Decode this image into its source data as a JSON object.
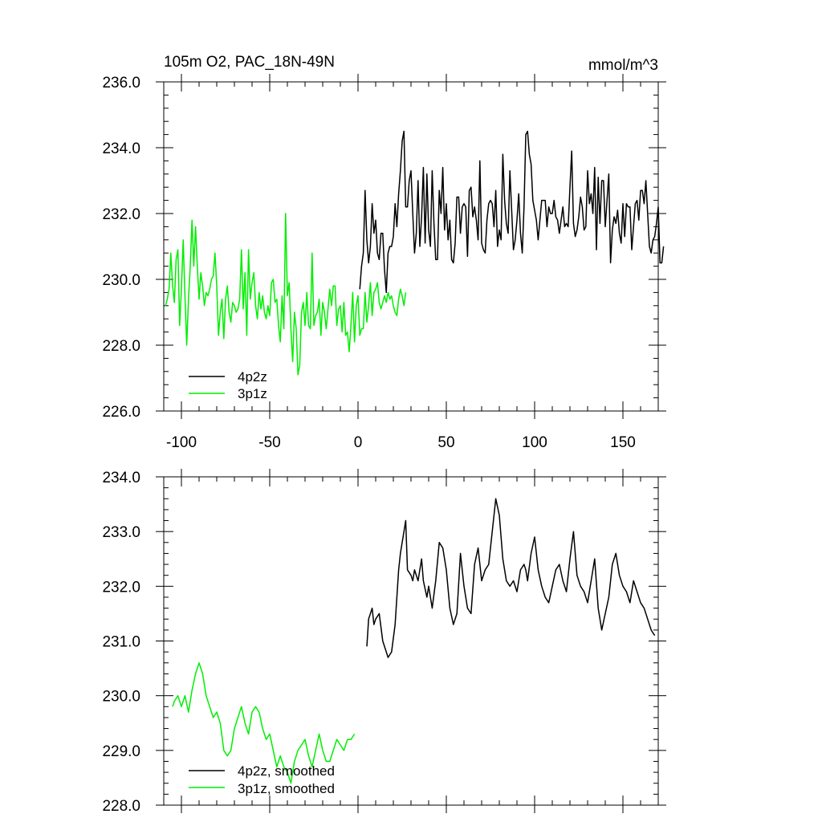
{
  "chart_data": [
    {
      "type": "line",
      "title": "105m O2, PAC_18N-49N",
      "units": "mmol/m^3",
      "xlim": [
        -110,
        170
      ],
      "ylim": [
        226,
        236
      ],
      "xticks": [
        -100,
        -50,
        0,
        50,
        100,
        150
      ],
      "xtick_labels": [
        "-100",
        "-50",
        "0",
        "50",
        "100",
        "150"
      ],
      "yticks": [
        226,
        228,
        230,
        232,
        234,
        236
      ],
      "ytick_labels": [
        "226.0",
        "228.0",
        "230.0",
        "232.0",
        "234.0",
        "236.0"
      ],
      "legend_position": "bottom-left",
      "series": [
        {
          "name": "4p2z",
          "color": "#000000",
          "x_start": 1,
          "x_step": 1,
          "values": [
            229.7,
            230.4,
            230.8,
            232.7,
            231.2,
            230.5,
            231.0,
            232.3,
            231.4,
            231.8,
            230.8,
            230.6,
            231.4,
            231.4,
            230.3,
            229.6,
            230.8,
            231.0,
            231.0,
            231.3,
            232.3,
            231.6,
            232.6,
            233.3,
            234.2,
            234.5,
            232.2,
            232.2,
            233.0,
            233.3,
            232.0,
            230.8,
            231.4,
            233.0,
            231.0,
            231.9,
            233.4,
            231.1,
            233.2,
            231.5,
            231.0,
            233.3,
            231.7,
            230.6,
            230.6,
            232.7,
            232.0,
            233.4,
            231.5,
            232.3,
            231.2,
            231.8,
            230.6,
            230.5,
            231.1,
            232.5,
            232.5,
            231.4,
            232.2,
            232.3,
            232.2,
            230.7,
            232.7,
            232.8,
            231.9,
            232.2,
            231.8,
            231.2,
            233.6,
            231.1,
            230.9,
            230.8,
            231.8,
            232.3,
            232.4,
            232.3,
            231.6,
            232.7,
            231.0,
            231.5,
            231.2,
            233.8,
            232.4,
            231.7,
            231.4,
            233.3,
            232.1,
            230.9,
            231.2,
            231.8,
            232.6,
            231.4,
            230.8,
            232.2,
            234.4,
            234.5,
            233.8,
            233.5,
            232.4,
            232.1,
            231.8,
            231.2,
            231.8,
            232.4,
            232.4,
            232.4,
            231.6,
            232.2,
            232.0,
            232.0,
            232.4,
            231.9,
            231.8,
            231.4,
            231.8,
            232.2,
            231.6,
            231.7,
            231.6,
            232.8,
            233.9,
            231.7,
            231.3,
            231.5,
            231.9,
            232.5,
            232.2,
            231.5,
            231.6,
            233.3,
            232.3,
            232.6,
            232.0,
            233.4,
            230.9,
            233.1,
            231.7,
            233.0,
            233.0,
            231.6,
            232.4,
            233.2,
            230.5,
            231.5,
            231.9,
            231.7,
            232.1,
            231.4,
            231.1,
            232.3,
            231.3,
            232.3,
            232.2,
            232.2,
            230.9,
            231.6,
            232.3,
            232.4,
            231.8,
            232.7,
            232.7,
            232.3,
            233.0,
            232.0,
            231.0,
            230.8,
            231.2,
            231.3,
            231.7,
            232.2,
            230.5,
            230.5,
            231.0
          ]
        },
        {
          "name": "3p1z",
          "color": "#00ee00",
          "x_start": -109,
          "x_step": 1,
          "values": [
            229.2,
            229.4,
            229.7,
            230.8,
            229.8,
            229.3,
            230.6,
            230.9,
            228.6,
            229.7,
            231.2,
            229.5,
            228.0,
            229.4,
            230.4,
            231.8,
            230.4,
            231.6,
            230.4,
            229.4,
            230.2,
            229.8,
            229.2,
            229.6,
            229.5,
            229.7,
            230.0,
            230.1,
            230.8,
            229.8,
            228.3,
            229.0,
            229.4,
            228.2,
            229.4,
            229.8,
            229.0,
            228.7,
            229.3,
            229.2,
            229.0,
            229.1,
            229.4,
            230.9,
            229.1,
            230.2,
            228.3,
            230.9,
            229.4,
            229.9,
            230.2,
            229.2,
            228.8,
            229.6,
            229.1,
            229.5,
            229.0,
            228.8,
            229.2,
            228.9,
            229.9,
            230.0,
            229.3,
            229.4,
            228.6,
            228.1,
            229.5,
            228.5,
            232.0,
            229.5,
            229.9,
            228.5,
            227.5,
            229.0,
            228.5,
            227.1,
            227.4,
            229.0,
            229.3,
            228.6,
            229.6,
            228.6,
            228.5,
            230.8,
            228.6,
            228.9,
            229.0,
            229.4,
            228.3,
            229.3,
            229.0,
            228.5,
            229.1,
            229.7,
            229.2,
            229.8,
            229.8,
            228.6,
            229.1,
            229.2,
            228.4,
            229.3,
            228.3,
            228.4,
            227.8,
            228.6,
            229.6,
            228.1,
            229.2,
            229.5,
            228.3,
            228.5,
            228.5,
            229.6,
            228.7,
            229.2,
            229.9,
            228.9,
            229.6,
            229.7,
            229.9,
            229.3,
            229.1,
            229.3,
            229.5,
            229.3,
            229.6,
            229.4,
            229.5,
            229.2,
            229.0,
            228.9,
            229.4,
            229.7,
            229.5,
            229.2,
            229.6
          ]
        }
      ]
    },
    {
      "type": "line",
      "xlim": [
        -110,
        170
      ],
      "ylim": [
        228,
        234
      ],
      "xticks": [
        -100,
        -50,
        0,
        50,
        100,
        150
      ],
      "yticks": [
        228,
        229,
        230,
        231,
        232,
        233,
        234
      ],
      "ytick_labels": [
        "228.0",
        "229.0",
        "230.0",
        "231.0",
        "232.0",
        "233.0",
        "234.0"
      ],
      "legend_position": "bottom-left",
      "series": [
        {
          "name": "4p2z, smoothed",
          "color": "#000000",
          "x": [
            5,
            6,
            8,
            9,
            10,
            12,
            14,
            16,
            17,
            19,
            21,
            23,
            24,
            26,
            27,
            28,
            30,
            31,
            32,
            34,
            36,
            37,
            39,
            40,
            42,
            44,
            46,
            48,
            50,
            52,
            54,
            56,
            58,
            60,
            62,
            64,
            66,
            68,
            70,
            72,
            74,
            76,
            78,
            80,
            82,
            84,
            86,
            88,
            90,
            92,
            94,
            95,
            96,
            98,
            100,
            102,
            104,
            106,
            108,
            110,
            112,
            114,
            116,
            118,
            120,
            122,
            124,
            126,
            128,
            130,
            132,
            134,
            136,
            138,
            140,
            142,
            144,
            146,
            148,
            150,
            152,
            154,
            156,
            158,
            160,
            162,
            164,
            166,
            168
          ],
          "values": [
            230.9,
            231.4,
            231.6,
            231.3,
            231.4,
            231.5,
            231.0,
            230.8,
            230.7,
            230.8,
            231.3,
            232.3,
            232.6,
            233.0,
            233.2,
            232.3,
            232.2,
            232.1,
            232.3,
            232.1,
            232.5,
            232.1,
            231.8,
            232.0,
            231.6,
            232.1,
            232.8,
            232.7,
            232.3,
            231.6,
            231.3,
            231.5,
            232.6,
            232.0,
            231.6,
            231.5,
            232.4,
            232.7,
            232.1,
            232.3,
            232.4,
            233.0,
            233.6,
            233.3,
            232.5,
            232.1,
            232.0,
            232.1,
            231.9,
            232.3,
            232.4,
            232.3,
            232.1,
            232.6,
            232.9,
            232.3,
            232.0,
            231.8,
            231.7,
            232.0,
            232.3,
            232.4,
            232.1,
            231.9,
            232.5,
            233.0,
            232.2,
            232.0,
            231.9,
            231.7,
            232.1,
            232.5,
            231.6,
            231.2,
            231.5,
            231.8,
            232.4,
            232.6,
            232.2,
            232.0,
            231.9,
            231.7,
            232.1,
            231.9,
            231.7,
            231.6,
            231.4,
            231.2,
            231.1
          ]
        },
        {
          "name": "3p1z, smoothed",
          "color": "#00ee00",
          "x": [
            -105,
            -104,
            -102,
            -100,
            -98,
            -96,
            -94,
            -92,
            -90,
            -88,
            -86,
            -84,
            -82,
            -80,
            -78,
            -76,
            -74,
            -72,
            -70,
            -68,
            -66,
            -64,
            -62,
            -60,
            -58,
            -56,
            -54,
            -52,
            -50,
            -48,
            -46,
            -44,
            -42,
            -40,
            -38,
            -36,
            -34,
            -32,
            -30,
            -28,
            -26,
            -24,
            -22,
            -20,
            -18,
            -16,
            -14,
            -12,
            -10,
            -8,
            -6,
            -4,
            -2
          ],
          "values": [
            229.8,
            229.9,
            230.0,
            229.8,
            230.0,
            229.7,
            230.1,
            230.4,
            230.6,
            230.4,
            230.0,
            229.8,
            229.6,
            229.7,
            229.5,
            229.0,
            228.9,
            229.0,
            229.4,
            229.6,
            229.8,
            229.5,
            229.3,
            229.7,
            229.8,
            229.7,
            229.4,
            229.2,
            229.3,
            229.0,
            228.7,
            228.9,
            228.7,
            228.6,
            228.4,
            228.8,
            229.0,
            229.1,
            229.2,
            228.9,
            228.7,
            229.0,
            229.3,
            229.0,
            228.8,
            228.8,
            229.0,
            229.2,
            229.1,
            229.0,
            229.2,
            229.2,
            229.3
          ]
        }
      ]
    }
  ]
}
